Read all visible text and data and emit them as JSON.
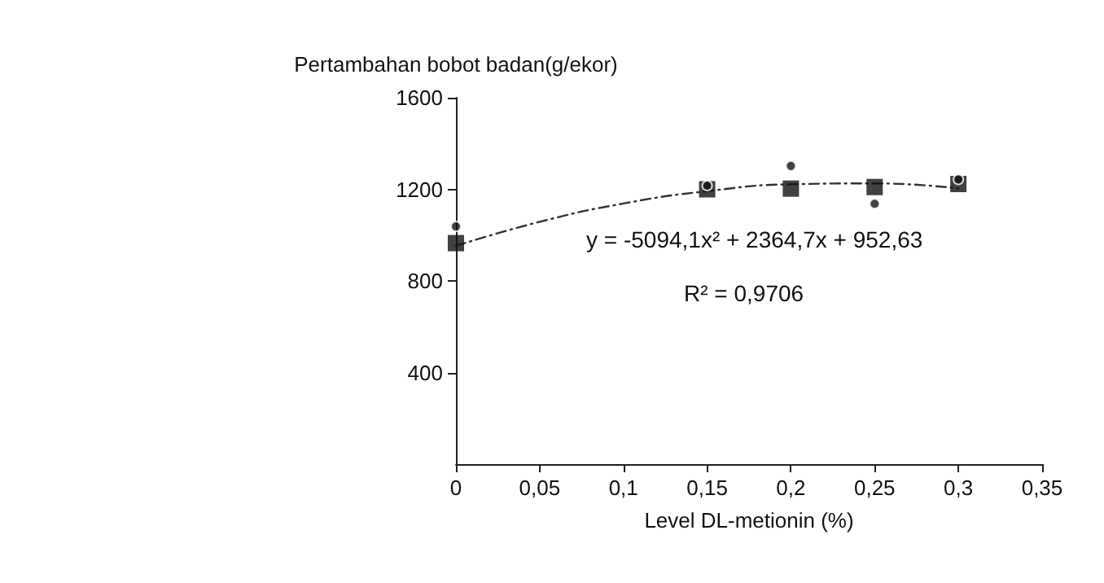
{
  "chart_data": {
    "type": "scatter",
    "ylabel": "Pertambahan bobot badan(g/ekor)",
    "xlabel": "Level DL-metionin (%)",
    "x": [
      0,
      0.15,
      0.2,
      0.25,
      0.3
    ],
    "series": [
      {
        "color": "#111111",
        "marker": "circle",
        "values": [
          1038,
          1216,
          1302,
          1137,
          1243
        ]
      },
      {
        "color": "#111111",
        "marker": "square",
        "values": [
          965,
          1200,
          1203,
          1210,
          1223
        ]
      },
      {
        "type": "line",
        "color": "#333333",
        "line_style": "dashed",
        "marker": "none",
        "x": [
          0,
          0.05,
          0.1,
          0.15,
          0.2,
          0.25,
          0.3
        ],
        "values": [
          953,
          1058,
          1138,
          1192,
          1222,
          1226,
          1204
        ]
      }
    ],
    "xlim": [
      0,
      0.35
    ],
    "xticks": [
      0,
      {
        "value": 0.05,
        "label": "0,05"
      },
      {
        "value": 0.1,
        "label": "0,1"
      },
      {
        "value": 0.15,
        "label": "0,15"
      },
      {
        "value": 0.2,
        "label": "0,2"
      },
      {
        "value": 0.25,
        "label": "0,25"
      },
      {
        "value": 0.3,
        "label": "0,3"
      },
      {
        "value": 0.35,
        "label": "0,35"
      }
    ],
    "ylim": [
      0,
      1600
    ],
    "yticks": [
      400,
      800,
      1200,
      1600
    ],
    "grid": false,
    "annotations": [
      "y = -5094,1x² + 2364,7x + 952,63",
      "R² = 0,9706"
    ]
  }
}
